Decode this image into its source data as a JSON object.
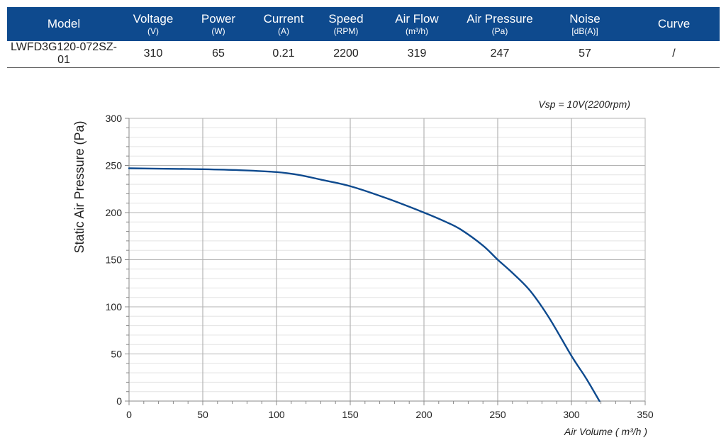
{
  "table": {
    "headers": [
      {
        "name": "Model",
        "unit": ""
      },
      {
        "name": "Voltage",
        "unit": "(V)"
      },
      {
        "name": "Power",
        "unit": "(W)"
      },
      {
        "name": "Current",
        "unit": "(A)"
      },
      {
        "name": "Speed",
        "unit": "(RPM)"
      },
      {
        "name": "Air Flow",
        "unit": "(m³/h)"
      },
      {
        "name": "Air Pressure",
        "unit": "(Pa)"
      },
      {
        "name": "Noise",
        "unit": "[dB(A)]"
      },
      {
        "name": "Curve",
        "unit": ""
      }
    ],
    "row": [
      "LWFD3G120-072SZ-01",
      "310",
      "65",
      "0.21",
      "2200",
      "319",
      "247",
      "57",
      "/"
    ]
  },
  "colors": {
    "header_bg": "#0e4a8e",
    "curve": "#0e4a8e",
    "grid_major": "#b3b3b3",
    "grid_minor": "#e3e3e3"
  },
  "chart_data": {
    "type": "line",
    "title": "",
    "annotation": "Vsp = 10V(2200rpm)",
    "xlabel": "Air Volume ( m³/h )",
    "ylabel": "Static Air Pressure  (Pa)",
    "xlim": [
      0,
      350
    ],
    "ylim": [
      0,
      300
    ],
    "xticks": [
      0,
      50,
      100,
      150,
      200,
      250,
      300,
      350
    ],
    "yticks": [
      0,
      50,
      100,
      150,
      200,
      250,
      300
    ],
    "grid": true,
    "series": [
      {
        "x": [
          0,
          25,
          50,
          75,
          100,
          115,
          130,
          150,
          175,
          200,
          215,
          225,
          240,
          250,
          260,
          272,
          285,
          300,
          310,
          319
        ],
        "y": [
          247,
          246.5,
          246,
          245,
          243,
          240,
          235,
          228,
          215,
          200,
          190,
          182,
          165,
          150,
          136,
          117,
          88,
          48,
          24,
          0
        ]
      }
    ]
  }
}
